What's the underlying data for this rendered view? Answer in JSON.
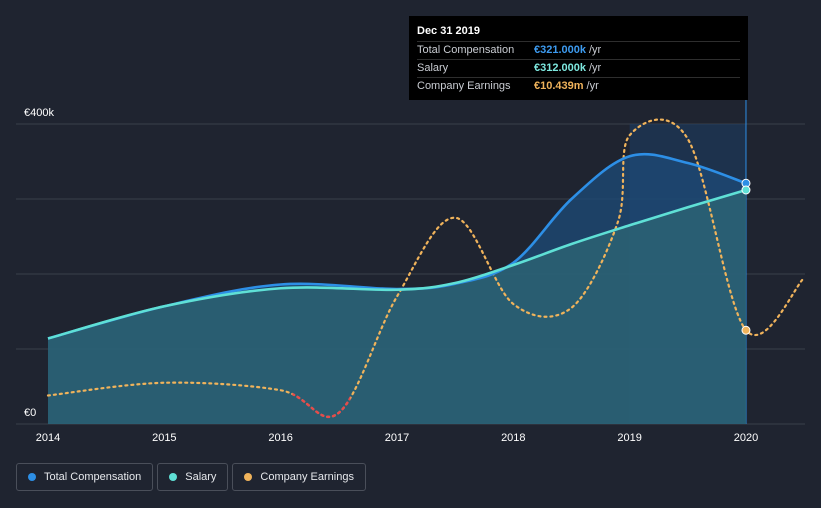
{
  "colors": {
    "background": "#1f2430",
    "total_compensation": "#2d8fe6",
    "salary": "#5fe0d6",
    "earnings": "#f0b35b",
    "earnings_negative": "#e54b4b",
    "grid": "#3a3f4a"
  },
  "tooltip": {
    "date": "Dec 31 2019",
    "rows": [
      {
        "label": "Total Compensation",
        "value": "€321.000k",
        "unit": "/yr",
        "color": "#3d9bf0"
      },
      {
        "label": "Salary",
        "value": "€312.000k",
        "unit": "/yr",
        "color": "#7ee8df"
      },
      {
        "label": "Company Earnings",
        "value": "€10.439m",
        "unit": "/yr",
        "color": "#f0b35b"
      }
    ]
  },
  "legend": [
    {
      "label": "Total Compensation",
      "color": "#2d8fe6"
    },
    {
      "label": "Salary",
      "color": "#5fe0d6"
    },
    {
      "label": "Company Earnings",
      "color": "#f0b35b"
    }
  ],
  "chart_data": {
    "type": "area",
    "x_ticks": [
      "2014",
      "2015",
      "2016",
      "2017",
      "2018",
      "2019",
      "2020"
    ],
    "y_ticks": [
      "€0",
      "€400k"
    ],
    "ylim": [
      0,
      400000
    ],
    "xlim": [
      2014,
      2020.5
    ],
    "grid": true,
    "legend_position": "bottom-left",
    "series": [
      {
        "name": "Total Compensation",
        "x": [
          2014.0,
          2015.0,
          2016.0,
          2017.0,
          2017.5,
          2018.0,
          2018.5,
          2019.0,
          2019.5,
          2020.0
        ],
        "y": [
          114000,
          157000,
          186000,
          180000,
          187000,
          215000,
          300000,
          357000,
          348000,
          321000
        ]
      },
      {
        "name": "Salary",
        "x": [
          2014.0,
          2015.0,
          2016.0,
          2017.0,
          2017.5,
          2018.0,
          2018.5,
          2019.0,
          2019.5,
          2020.0
        ],
        "y": [
          114000,
          157000,
          181000,
          179000,
          188000,
          212000,
          240000,
          265000,
          289000,
          312000
        ]
      },
      {
        "name": "Company Earnings",
        "x": [
          2014.0,
          2015.0,
          2016.0,
          2016.5,
          2017.0,
          2017.5,
          2018.0,
          2018.5,
          2018.9,
          2019.0,
          2019.5,
          2020.0,
          2020.5
        ],
        "y_pixel_scale": "right-axis-unlabeled",
        "y": [
          38000,
          55000,
          45000,
          15000,
          170000,
          275000,
          160000,
          155000,
          270000,
          385000,
          380000,
          125000,
          195000
        ],
        "negative_segment_x": [
          2016.1,
          2016.6
        ]
      }
    ]
  }
}
